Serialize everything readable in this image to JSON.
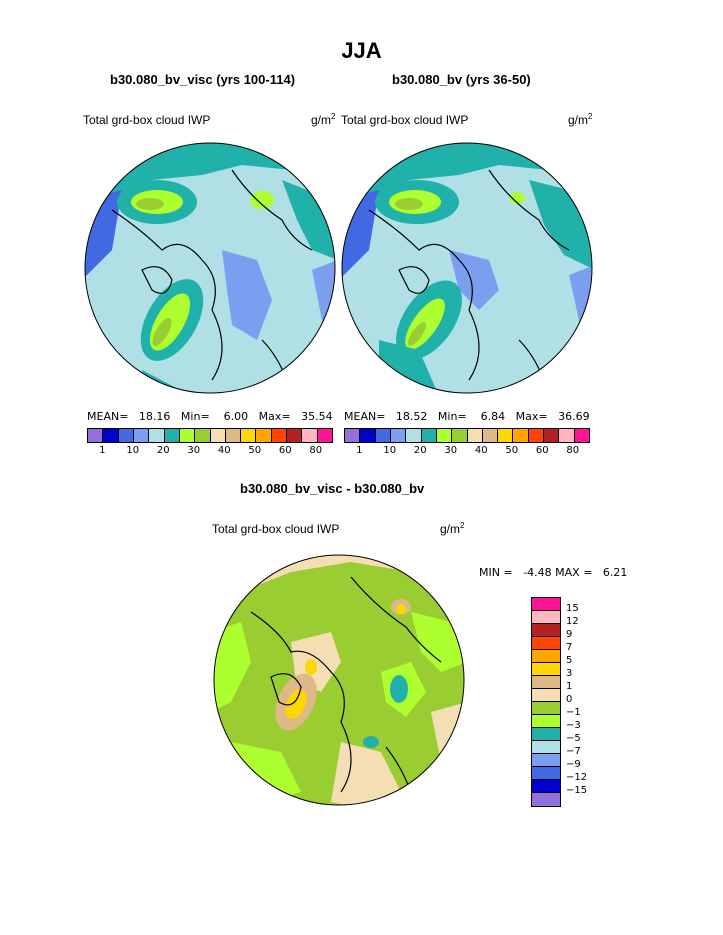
{
  "page_title": "JJA",
  "panels": {
    "left": {
      "title": "b30.080_bv_visc (yrs 100-114)",
      "left_label": "Total grd-box cloud IWP",
      "units": "g/m",
      "units_sup": "2",
      "stats": {
        "mean_label": "MEAN=",
        "mean": "18.16",
        "min_label": "Min=",
        "min": "6.00",
        "max_label": "Max=",
        "max": "35.54"
      }
    },
    "right": {
      "title": "b30.080_bv (yrs 36-50)",
      "left_label": "Total grd-box cloud IWP",
      "units": "g/m",
      "units_sup": "2",
      "stats": {
        "mean_label": "MEAN=",
        "mean": "18.52",
        "min_label": "Min=",
        "min": "6.84",
        "max_label": "Max=",
        "max": "36.69"
      }
    },
    "diff": {
      "title": "b30.080_bv_visc - b30.080_bv",
      "left_label": "Total grd-box cloud IWP",
      "units": "g/m",
      "units_sup": "2",
      "stats": {
        "min_label": "MIN =",
        "min": "-4.48",
        "max_label": "MAX =",
        "max": "6.21"
      }
    }
  },
  "colorbar_top": {
    "colors": [
      "#9370db",
      "#0000cd",
      "#4169e1",
      "#7b9ef0",
      "#b0e0e6",
      "#20b2aa",
      "#adff2f",
      "#9acd32",
      "#f5deb3",
      "#deb887",
      "#ffd700",
      "#ffa500",
      "#ff4500",
      "#b22222",
      "#ffb6c1",
      "#ff1493"
    ],
    "tick_labels": [
      "1",
      "10",
      "20",
      "30",
      "40",
      "50",
      "60",
      "80"
    ]
  },
  "colorbar_diff": {
    "colors": [
      "#ff1493",
      "#ffb6c1",
      "#b22222",
      "#ff4500",
      "#ffa500",
      "#ffd700",
      "#deb887",
      "#f5deb3",
      "#9acd32",
      "#adff2f",
      "#20b2aa",
      "#b0e0e6",
      "#7b9ef0",
      "#4169e1",
      "#0000cd",
      "#9370db"
    ],
    "tick_labels": [
      "15",
      "12",
      "9",
      "7",
      "5",
      "3",
      "1",
      "0",
      "−1",
      "−3",
      "−5",
      "−7",
      "−9",
      "−12",
      "−15"
    ]
  }
}
